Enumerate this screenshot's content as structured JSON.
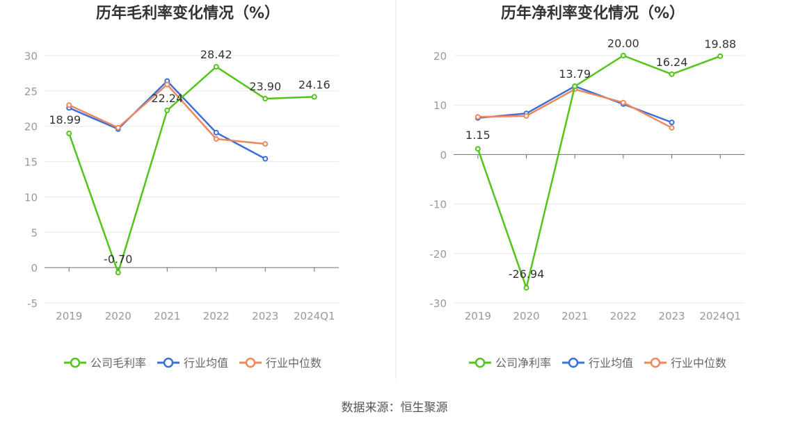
{
  "chart_data": [
    {
      "type": "line",
      "title": "历年毛利率变化情况（%）",
      "categories": [
        "2019",
        "2020",
        "2021",
        "2022",
        "2023",
        "2024Q1"
      ],
      "ylim": [
        -5,
        30
      ],
      "yticks": [
        30,
        25,
        20,
        15,
        10,
        5,
        0,
        -5
      ],
      "series": [
        {
          "name": "公司毛利率",
          "color": "#52c41a",
          "values": [
            18.99,
            -0.7,
            22.24,
            28.42,
            23.9,
            24.16
          ],
          "labels": [
            "18.99",
            "-0.70",
            "22.24",
            "28.42",
            "23.90",
            "24.16"
          ]
        },
        {
          "name": "行业均值",
          "color": "#3a6fdb",
          "values": [
            22.6,
            19.6,
            26.4,
            19.1,
            15.4,
            null
          ]
        },
        {
          "name": "行业中位数",
          "color": "#f0875a",
          "values": [
            23.0,
            19.8,
            25.9,
            18.2,
            17.5,
            null
          ]
        }
      ]
    },
    {
      "type": "line",
      "title": "历年净利率变化情况（%）",
      "categories": [
        "2019",
        "2020",
        "2021",
        "2022",
        "2023",
        "2024Q1"
      ],
      "ylim": [
        -30,
        20
      ],
      "yticks": [
        20,
        10,
        0,
        -10,
        -20,
        -30
      ],
      "series": [
        {
          "name": "公司净利率",
          "color": "#52c41a",
          "values": [
            1.15,
            -26.94,
            13.79,
            20.0,
            16.24,
            19.88
          ],
          "labels": [
            "1.15",
            "-26.94",
            "13.79",
            "20.00",
            "16.24",
            "19.88"
          ]
        },
        {
          "name": "行业均值",
          "color": "#3a6fdb",
          "values": [
            7.4,
            8.3,
            13.8,
            10.2,
            6.5,
            null
          ]
        },
        {
          "name": "行业中位数",
          "color": "#f0875a",
          "values": [
            7.6,
            7.8,
            13.2,
            10.5,
            5.4,
            null
          ]
        }
      ]
    }
  ],
  "footer": {
    "source": "数据来源：恒生聚源"
  }
}
